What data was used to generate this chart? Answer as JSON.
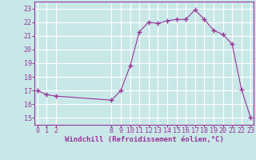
{
  "hours": [
    0,
    1,
    2,
    8,
    9,
    10,
    11,
    12,
    13,
    14,
    15,
    16,
    17,
    18,
    19,
    20,
    21,
    22,
    23
  ],
  "values": [
    17.0,
    16.7,
    16.6,
    16.3,
    17.0,
    18.8,
    21.3,
    22.0,
    21.9,
    22.1,
    22.2,
    22.2,
    22.9,
    22.2,
    21.4,
    21.1,
    20.4,
    17.1,
    15.0
  ],
  "line_color": "#993399",
  "marker_color": "#993399",
  "bg_color": "#c8e8e8",
  "grid_color": "#ffffff",
  "xlabel": "Windchill (Refroidissement éolien,°C)",
  "xticks": [
    0,
    1,
    2,
    8,
    9,
    10,
    11,
    12,
    13,
    14,
    15,
    16,
    17,
    18,
    19,
    20,
    21,
    22,
    23
  ],
  "yticks": [
    15,
    16,
    17,
    18,
    19,
    20,
    21,
    22,
    23
  ],
  "ylim": [
    14.5,
    23.5
  ],
  "xlim": [
    -0.3,
    23.3
  ],
  "tick_color": "#993399",
  "label_color": "#993399",
  "label_fontsize": 6.5,
  "tick_fontsize": 6
}
